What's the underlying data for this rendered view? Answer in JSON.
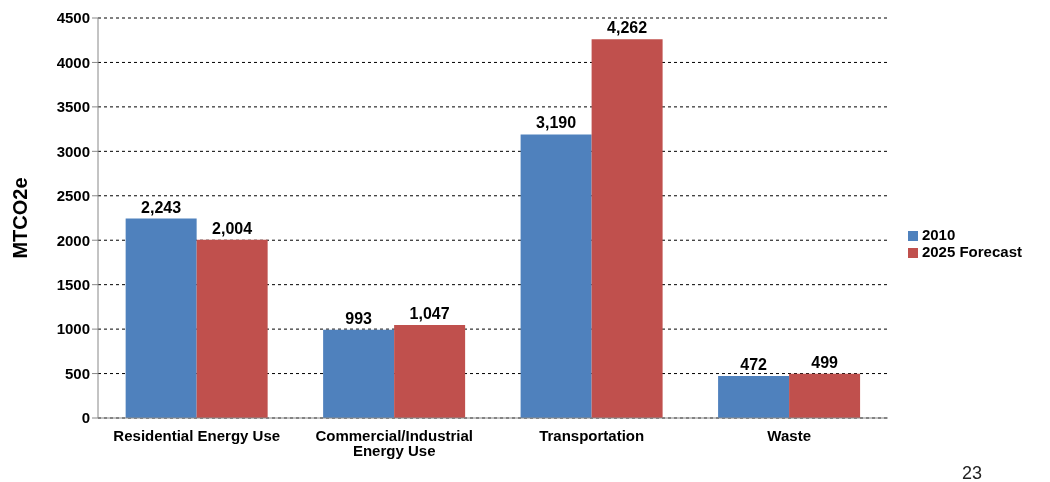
{
  "chart_data": {
    "type": "bar",
    "ylabel": "MTCO2e",
    "categories": [
      "Residential Energy Use",
      "Commercial/Industrial Energy Use",
      "Transportation",
      "Waste"
    ],
    "series": [
      {
        "name": "2010",
        "color": "#4f81bd",
        "values": [
          2243,
          993,
          3190,
          472
        ],
        "value_labels": [
          "2,243",
          "993",
          "3,190",
          "472"
        ]
      },
      {
        "name": "2025 Forecast",
        "color": "#c0504d",
        "values": [
          2004,
          1047,
          4262,
          499
        ],
        "value_labels": [
          "2,004",
          "1,047",
          "4,262",
          "499"
        ]
      }
    ],
    "ylim": [
      0,
      4500
    ],
    "yticks": [
      0,
      500,
      1000,
      1500,
      2000,
      2500,
      3000,
      3500,
      4000,
      4500
    ],
    "grid": "y",
    "legend": "right",
    "annotations": [
      "23"
    ]
  }
}
